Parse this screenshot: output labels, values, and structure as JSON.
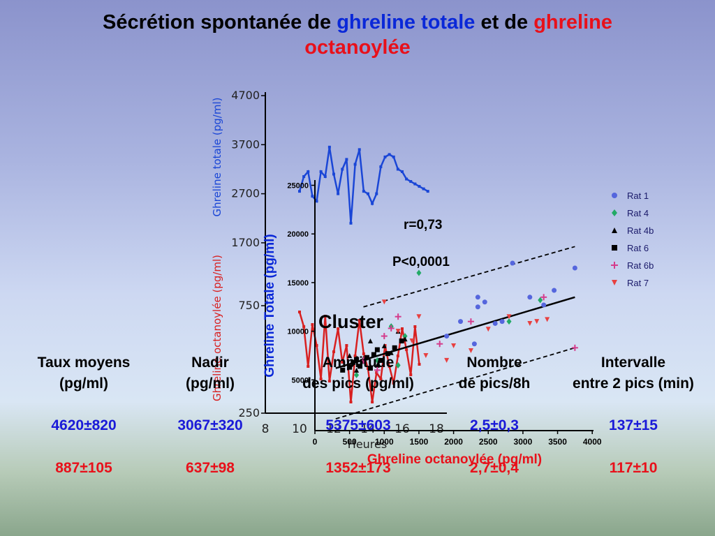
{
  "title": {
    "part1": "Sécrétion spontanée de ",
    "part2": "ghreline totale",
    "part3": " et de ",
    "part4": "ghreline",
    "part5": "octanoylée"
  },
  "colors": {
    "blue": "#0a28d8",
    "red": "#e8101a",
    "black": "#000000"
  },
  "table": {
    "headers": [
      [
        "Taux moyens",
        "(pg/ml)"
      ],
      [
        "Nadir",
        "(pg/ml)"
      ],
      [
        "Amplitude",
        "des pics (pg/ml)"
      ],
      [
        "Nombre",
        "de pics/8h"
      ],
      [
        "Intervalle",
        "entre 2 pics (min)"
      ]
    ],
    "row_blue": [
      "4620±820",
      "3067±320",
      "5375±603",
      "2,5±0,3",
      "137±15"
    ],
    "row_red": [
      "887±105",
      "637±98",
      "1352±173",
      "2,7±0,4",
      "117±10"
    ]
  },
  "chart_data": [
    {
      "type": "line",
      "ylabel_blue": "Ghreline totale (pg/ml)",
      "ylabel_red": "Ghreline octanoylée (pg/ml)",
      "xlabel": "Heures",
      "y_ticks_total": [
        "4700",
        "3700",
        "2700",
        "1700",
        "750",
        "250"
      ],
      "x_ticks": [
        "8",
        "10",
        "12",
        "14",
        "16",
        "18"
      ],
      "series": [
        {
          "color": "#1a46d6",
          "x": [
            10.0,
            10.25,
            10.5,
            10.75,
            11.0,
            11.25,
            11.5,
            11.75,
            12.0,
            12.25,
            12.5,
            12.75,
            13.0,
            13.25,
            13.5,
            13.75,
            14.0,
            14.25,
            14.5,
            14.75,
            15.0,
            15.25,
            15.5,
            15.75,
            16.0,
            16.25,
            16.5,
            16.75,
            17.0,
            17.25,
            17.5
          ],
          "y": [
            2750,
            3050,
            3150,
            2650,
            2550,
            3150,
            3050,
            3650,
            3100,
            2700,
            3200,
            3400,
            2100,
            3300,
            3600,
            2750,
            2700,
            2500,
            2700,
            3250,
            3450,
            3500,
            3450,
            3200,
            3150,
            3000,
            2950,
            2900,
            2850,
            2800,
            2750
          ]
        },
        {
          "color": "#d82020",
          "x": [
            10.0,
            10.25,
            10.5,
            10.75,
            11.0,
            11.25,
            11.5,
            11.75,
            12.0,
            12.25,
            12.5,
            12.75,
            13.0,
            13.25,
            13.5,
            13.75,
            14.0,
            14.25,
            14.5,
            14.75,
            15.0,
            15.25,
            15.5,
            15.75,
            16.0,
            16.25,
            16.5,
            16.75,
            17.0
          ],
          "y": [
            720,
            650,
            460,
            660,
            560,
            400,
            700,
            390,
            530,
            640,
            480,
            560,
            290,
            510,
            680,
            520,
            450,
            290,
            430,
            400,
            560,
            460,
            380,
            510,
            640,
            540,
            420,
            650,
            470
          ]
        }
      ]
    },
    {
      "type": "scatter",
      "xlabel": "Ghreline octanoylée (pg/ml)",
      "ylabel": "Ghreline Totale (pg/ml)",
      "x_ticks": [
        0,
        500,
        1000,
        1500,
        2000,
        2500,
        3000,
        3500,
        4000
      ],
      "y_ticks": [
        5000,
        10000,
        15000,
        20000,
        25000
      ],
      "annotations": [
        "r=0,73",
        "P<0,0001",
        "Cluster"
      ],
      "regression": {
        "x": [
          300,
          3750
        ],
        "y": [
          6200,
          13500
        ]
      },
      "confidence_upper": {
        "x": [
          700,
          3750
        ],
        "y": [
          12500,
          18700
        ]
      },
      "confidence_lower": {
        "x": [
          300,
          3750
        ],
        "y": [
          1000,
          8300
        ]
      },
      "series": [
        {
          "name": "Rat 1",
          "marker": "circle",
          "color": "#5566dd",
          "x": [
            2100,
            2350,
            2350,
            2450,
            2600,
            2850,
            3100,
            3300,
            3450,
            3750,
            2300,
            2700,
            1900
          ],
          "y": [
            11000,
            13500,
            12500,
            13000,
            10800,
            17000,
            13500,
            12700,
            14200,
            16500,
            8700,
            11000,
            9500
          ]
        },
        {
          "name": "Rat 4",
          "marker": "diamond",
          "color": "#22aa66",
          "x": [
            1500,
            3250,
            600,
            900,
            1200,
            2800,
            1100,
            1300
          ],
          "y": [
            16000,
            13200,
            5500,
            7000,
            6500,
            11000,
            10500,
            9500
          ]
        },
        {
          "name": "Rat 4b",
          "marker": "triangle",
          "color": "#000000",
          "x": [
            500,
            600,
            700,
            800,
            900,
            1000,
            1100,
            1200,
            1300
          ],
          "y": [
            7500,
            6000,
            7200,
            9000,
            6500,
            8500,
            7800,
            10000,
            9200
          ]
        },
        {
          "name": "Rat 6",
          "marker": "square",
          "color": "#000000",
          "x": [
            400,
            500,
            550,
            600,
            650,
            700,
            750,
            800,
            850,
            900,
            950,
            1050,
            1150,
            1250
          ],
          "y": [
            6000,
            6300,
            6800,
            7100,
            6400,
            6900,
            7300,
            6200,
            7600,
            8100,
            7000,
            7700,
            8300,
            9000
          ]
        },
        {
          "name": "Rat 6b",
          "marker": "plus",
          "color": "#d43c8c",
          "x": [
            1000,
            1100,
            1200,
            1800,
            2250,
            3750,
            3300,
            900,
            700
          ],
          "y": [
            9500,
            10300,
            11500,
            8700,
            11000,
            8300,
            13500,
            6000,
            7000
          ]
        },
        {
          "name": "Rat 7",
          "marker": "triangle-down",
          "color": "#e84040",
          "x": [
            1000,
            1200,
            1400,
            1600,
            1900,
            2250,
            2800,
            3200,
            3350,
            1500,
            2500,
            2000,
            3100
          ],
          "y": [
            13000,
            10000,
            9000,
            7500,
            7000,
            8000,
            11500,
            11000,
            11200,
            11500,
            10200,
            8500,
            10800
          ]
        }
      ]
    }
  ]
}
